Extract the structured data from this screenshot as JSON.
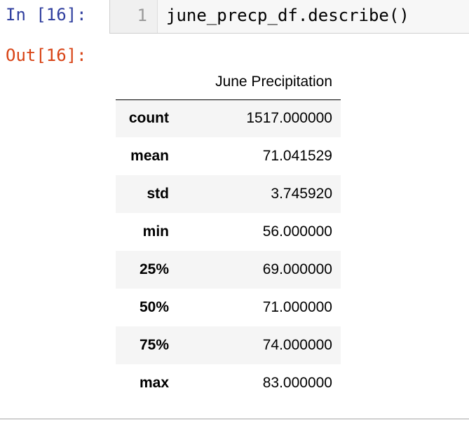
{
  "input_cell": {
    "prompt": "In [16]:",
    "line_number": "1",
    "code": "june_precp_df.describe()"
  },
  "output_cell": {
    "prompt": "Out[16]:",
    "table": {
      "column_header": "June Precipitation",
      "rows": [
        {
          "index": "count",
          "value": "1517.000000"
        },
        {
          "index": "mean",
          "value": "71.041529"
        },
        {
          "index": "std",
          "value": "3.745920"
        },
        {
          "index": "min",
          "value": "56.000000"
        },
        {
          "index": "25%",
          "value": "69.000000"
        },
        {
          "index": "50%",
          "value": "71.000000"
        },
        {
          "index": "75%",
          "value": "74.000000"
        },
        {
          "index": "max",
          "value": "83.000000"
        }
      ]
    }
  }
}
